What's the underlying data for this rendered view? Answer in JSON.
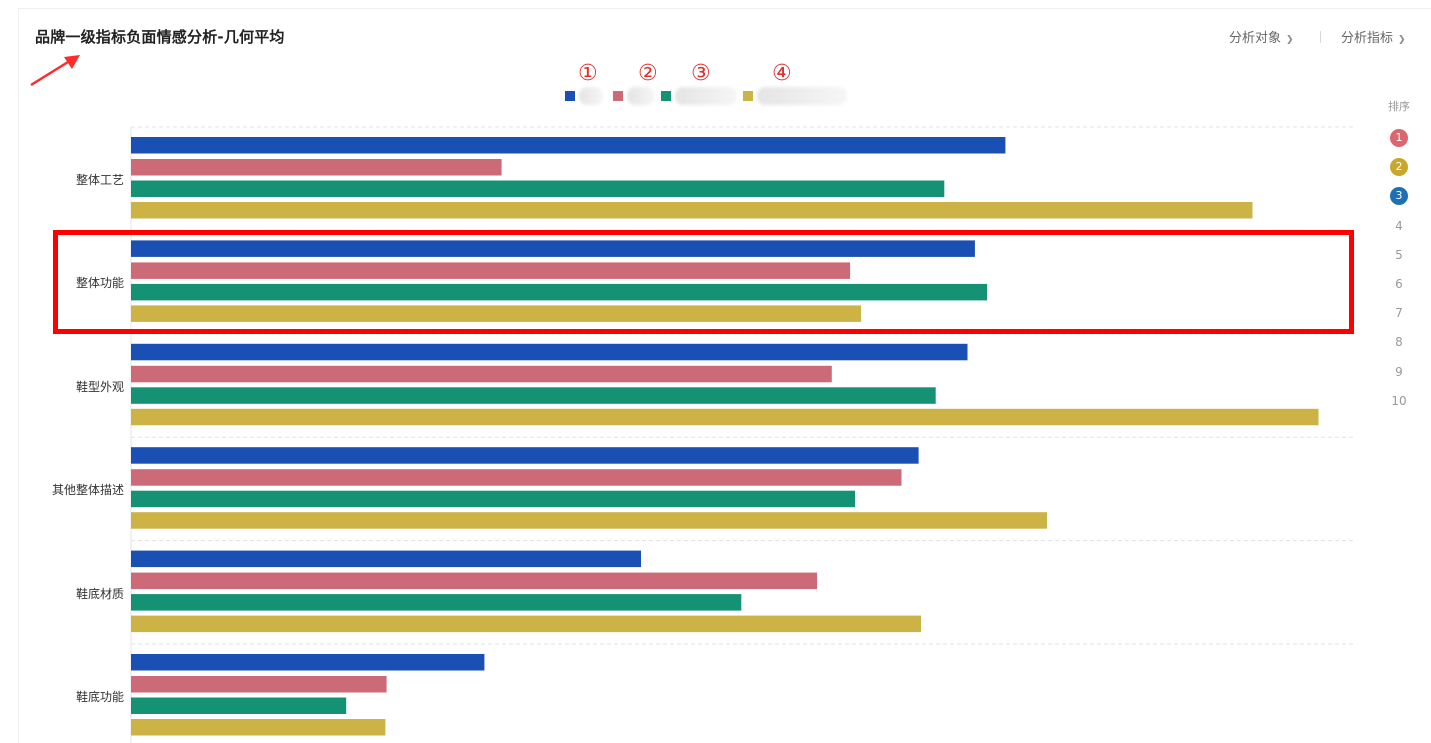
{
  "header": {
    "title": "品牌一级指标负面情感分析-几何平均",
    "controls": [
      {
        "label": "分析对象",
        "icon": "chevron-down-icon"
      },
      {
        "label": "分析指标",
        "icon": "chevron-down-icon"
      }
    ]
  },
  "annotations": {
    "markers": [
      "①",
      "②",
      "③",
      "④"
    ],
    "arrow_color": "#ff2a2a",
    "highlight_color": "#ff0000",
    "highlighted_category": "整体功能"
  },
  "rank": {
    "title": "排序",
    "items": [
      {
        "label": "1",
        "color": "#d9676f"
      },
      {
        "label": "2",
        "color": "#c9a72a"
      },
      {
        "label": "3",
        "color": "#1f6fb5"
      },
      {
        "label": "4"
      },
      {
        "label": "5"
      },
      {
        "label": "6"
      },
      {
        "label": "7"
      },
      {
        "label": "8"
      },
      {
        "label": "9"
      },
      {
        "label": "10"
      }
    ]
  },
  "chart_data": {
    "type": "bar",
    "orientation": "horizontal",
    "title": "",
    "xlabel": "",
    "ylabel": "",
    "xlim": [
      0,
      1.0
    ],
    "grid": true,
    "legend_placement": "top-center",
    "categories": [
      "整体工艺",
      "整体功能",
      "鞋型外观",
      "其他整体描述",
      "鞋底材质",
      "鞋底功能"
    ],
    "series": [
      {
        "color": "#1a4fb3",
        "values": [
          0.715,
          0.69,
          0.684,
          0.644,
          0.417,
          0.289
        ]
      },
      {
        "color": "#cd6a77",
        "values": [
          0.303,
          0.588,
          0.573,
          0.63,
          0.561,
          0.209
        ]
      },
      {
        "color": "#159173",
        "values": [
          0.665,
          0.7,
          0.658,
          0.592,
          0.499,
          0.176
        ]
      },
      {
        "color": "#cdb246",
        "values": [
          0.917,
          0.597,
          0.971,
          0.749,
          0.646,
          0.208
        ]
      }
    ]
  }
}
